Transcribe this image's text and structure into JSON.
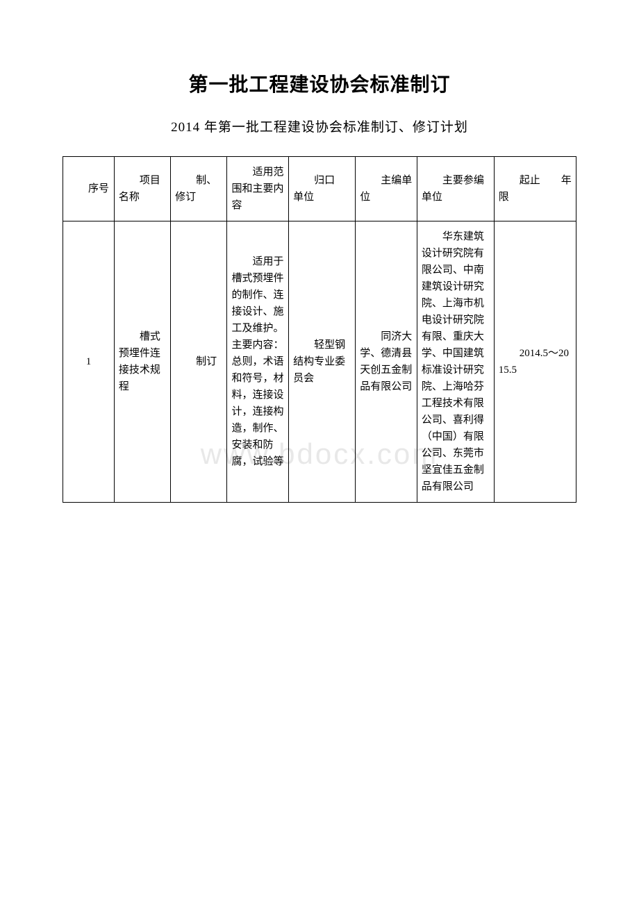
{
  "title": "第一批工程建设协会标准制订",
  "subtitle": "2014 年第一批工程建设协会标准制订、修订计划",
  "watermark": "www.bdocx.com",
  "table": {
    "headers": {
      "col1": "　　序号",
      "col2": "　　项目名称",
      "col3": "　　制、修订",
      "col4": "　　适用范围和主要内容",
      "col5": "　　归口　　单位",
      "col6": "　　主编单位",
      "col7": "　　主要参编单位",
      "col8": "　　起止　　年限"
    },
    "rows": [
      {
        "col1": "1",
        "col2": "　　槽式预埋件连接技术规程",
        "col3": "　　制订",
        "col4": "　　适用于槽式预埋件的制作、连接设计、施工及维护。主要内容：总则，术语和符号，材料，连接设计，连接构造，制作、安装和防腐，试验等",
        "col5": "　　轻型钢结构专业委员会",
        "col6": "　　同济大学、德清县天创五金制品有限公司",
        "col7": "　　华东建筑设计研究院有限公司、中南建筑设计研究院、上海市机电设计研究院有限、重庆大学、中国建筑标准设计研究院、上海哈芬工程技术有限公司、喜利得（中国）有限公司、东莞市坚宜佳五金制品有限公司",
        "col8": "　　2014.5～2015.5"
      }
    ]
  }
}
